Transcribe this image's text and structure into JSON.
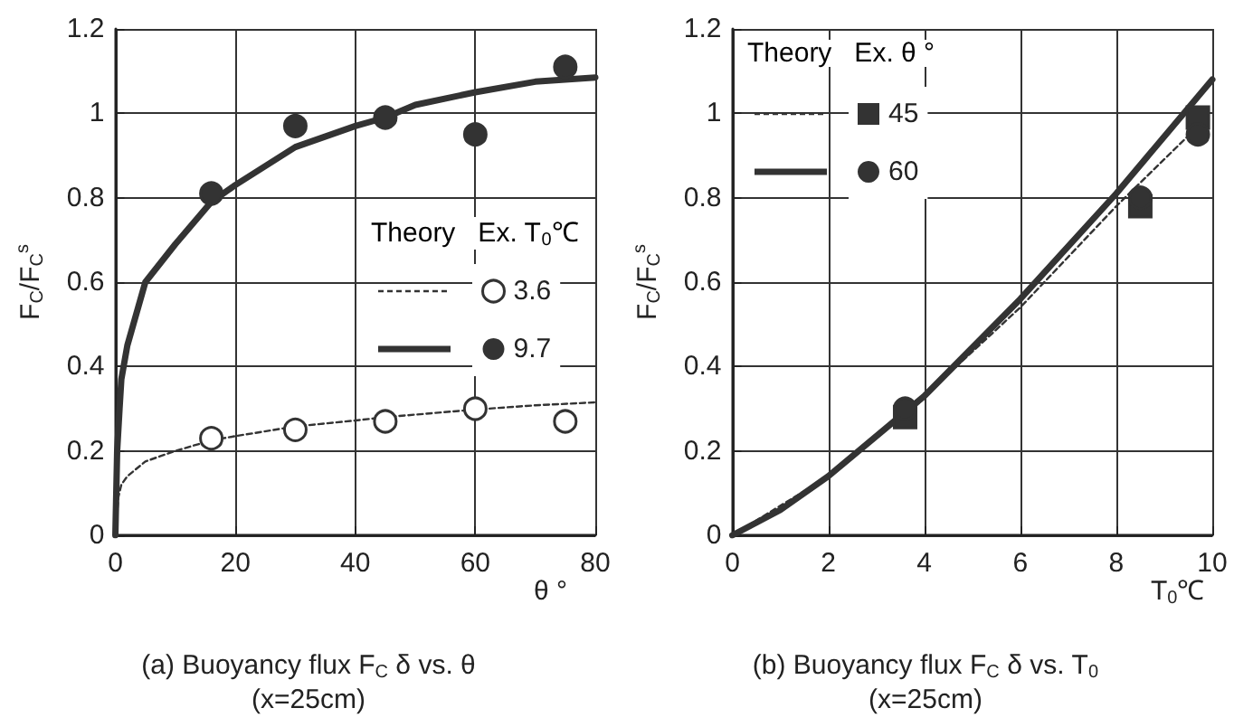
{
  "chart_data": [
    {
      "type": "scatter",
      "title": "(a) Buoyancy flux F$_{C}$ δ vs. θ",
      "subtitle": "(x=25cm)",
      "xlabel": "θ °",
      "ylabel": "F$_{C}$/F$_{C}$$^{s}$",
      "legend_title": "Theory   Ex. T$_{0}$℃",
      "xlim": [
        0,
        80
      ],
      "xticks": [
        0,
        20,
        40,
        60,
        80
      ],
      "ylim": [
        0,
        1.2
      ],
      "yticks": [
        0,
        0.2,
        0.4,
        0.6,
        0.8,
        1,
        1.2
      ],
      "grid": true,
      "legend": "right",
      "series": [
        {
          "type": "line",
          "line_style": "dashed",
          "marker": "none",
          "color": "#333333",
          "x": [
            0,
            0.5,
            1,
            2,
            5,
            10,
            16,
            20,
            30,
            40,
            45,
            50,
            60,
            70,
            80
          ],
          "values": [
            0,
            0.09,
            0.12,
            0.14,
            0.175,
            0.2,
            0.225,
            0.235,
            0.258,
            0.272,
            0.28,
            0.286,
            0.298,
            0.308,
            0.315
          ]
        },
        {
          "type": "line",
          "line_style": "solid",
          "marker": "none",
          "color": "#333333",
          "x": [
            0,
            0.3,
            0.7,
            1,
            2,
            5,
            10,
            16,
            20,
            30,
            40,
            45,
            50,
            60,
            70,
            80
          ],
          "values": [
            0,
            0.2,
            0.3,
            0.37,
            0.45,
            0.6,
            0.69,
            0.79,
            0.83,
            0.92,
            0.97,
            0.99,
            1.02,
            1.05,
            1.075,
            1.085
          ]
        },
        {
          "name": "3.6",
          "type": "scatter",
          "marker": "circle",
          "color": "#ffffff",
          "x": [
            16,
            30,
            45,
            60,
            75
          ],
          "values": [
            0.23,
            0.25,
            0.27,
            0.3,
            0.27
          ]
        },
        {
          "name": "9.7",
          "type": "scatter",
          "marker": "circle",
          "color": "#333333",
          "x": [
            16,
            30,
            45,
            60,
            75
          ],
          "values": [
            0.81,
            0.97,
            0.99,
            0.95,
            1.11
          ]
        }
      ]
    },
    {
      "type": "scatter",
      "title": "(b) Buoyancy flux F$_{C}$ δ vs. T$_{0}$",
      "subtitle": "(x=25cm)",
      "xlabel": "T$_{0}$℃",
      "ylabel": "F$_{C}$/F$_{C}$$^{s}$",
      "legend_title": "Theory   Ex. θ °",
      "xlim": [
        0,
        10
      ],
      "xticks": [
        0,
        2,
        4,
        6,
        8,
        10
      ],
      "ylim": [
        0,
        1.2
      ],
      "yticks": [
        0,
        0.2,
        0.4,
        0.6,
        0.8,
        1,
        1.2
      ],
      "grid": true,
      "legend": "top left",
      "series": [
        {
          "type": "line",
          "line_style": "dashed",
          "marker": "none",
          "color": "#333333",
          "x": [
            0,
            2,
            4,
            6,
            8,
            9.8
          ],
          "values": [
            0,
            0.14,
            0.33,
            0.54,
            0.78,
            0.98
          ]
        },
        {
          "type": "line",
          "line_style": "solid",
          "marker": "none",
          "color": "#333333",
          "x": [
            0,
            1,
            2,
            4,
            6,
            8,
            10
          ],
          "values": [
            0,
            0.06,
            0.14,
            0.33,
            0.56,
            0.81,
            1.08
          ]
        },
        {
          "name": "45",
          "type": "scatter",
          "marker": "square",
          "color": "#333333",
          "x": [
            3.6,
            8.5,
            9.7
          ],
          "values": [
            0.28,
            0.78,
            0.99
          ]
        },
        {
          "name": "60",
          "type": "scatter",
          "marker": "circle",
          "color": "#333333",
          "x": [
            3.6,
            8.5,
            9.7
          ],
          "values": [
            0.3,
            0.8,
            0.95
          ]
        }
      ]
    }
  ]
}
